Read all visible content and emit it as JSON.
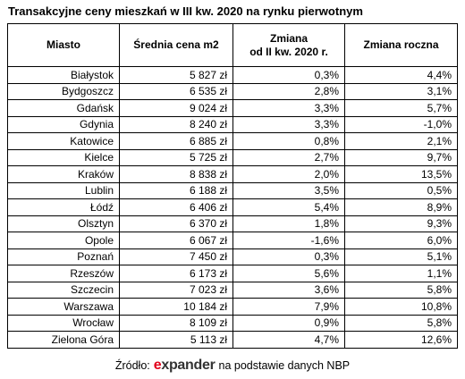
{
  "title": "Transakcyjne ceny mieszkań w III kw. 2020 na rynku pierwotnym",
  "table": {
    "header": [
      "Miasto",
      "Średnia cena m2",
      "Zmiana\nod II kw. 2020 r.",
      "Zmiana roczna"
    ],
    "rows": [
      [
        "Białystok",
        "5 827 zł",
        "0,3%",
        "4,4%"
      ],
      [
        "Bydgoszcz",
        "6 535 zł",
        "2,8%",
        "3,1%"
      ],
      [
        "Gdańsk",
        "9 024 zł",
        "3,3%",
        "5,7%"
      ],
      [
        "Gdynia",
        "8 240 zł",
        "3,3%",
        "-1,0%"
      ],
      [
        "Katowice",
        "6 885 zł",
        "0,8%",
        "2,1%"
      ],
      [
        "Kielce",
        "5 725 zł",
        "2,7%",
        "9,7%"
      ],
      [
        "Kraków",
        "8 838 zł",
        "2,0%",
        "13,5%"
      ],
      [
        "Lublin",
        "6 188 zł",
        "3,5%",
        "0,5%"
      ],
      [
        "Łódź",
        "6 406 zł",
        "5,4%",
        "8,9%"
      ],
      [
        "Olsztyn",
        "6 370 zł",
        "1,8%",
        "9,3%"
      ],
      [
        "Opole",
        "6 067 zł",
        "-1,6%",
        "6,0%"
      ],
      [
        "Poznań",
        "7 450 zł",
        "0,3%",
        "5,1%"
      ],
      [
        "Rzeszów",
        "6 173 zł",
        "5,6%",
        "1,1%"
      ],
      [
        "Szczecin",
        "7 023 zł",
        "3,6%",
        "5,8%"
      ],
      [
        "Warszawa",
        "10 184 zł",
        "7,9%",
        "10,8%"
      ],
      [
        "Wrocław",
        "8 109 zł",
        "0,9%",
        "5,8%"
      ],
      [
        "Zielona Góra",
        "5 113 zł",
        "4,7%",
        "12,6%"
      ]
    ]
  },
  "footer": {
    "source_label": "Źródło:",
    "logo": "expander",
    "note": "na podstawie danych NBP"
  }
}
